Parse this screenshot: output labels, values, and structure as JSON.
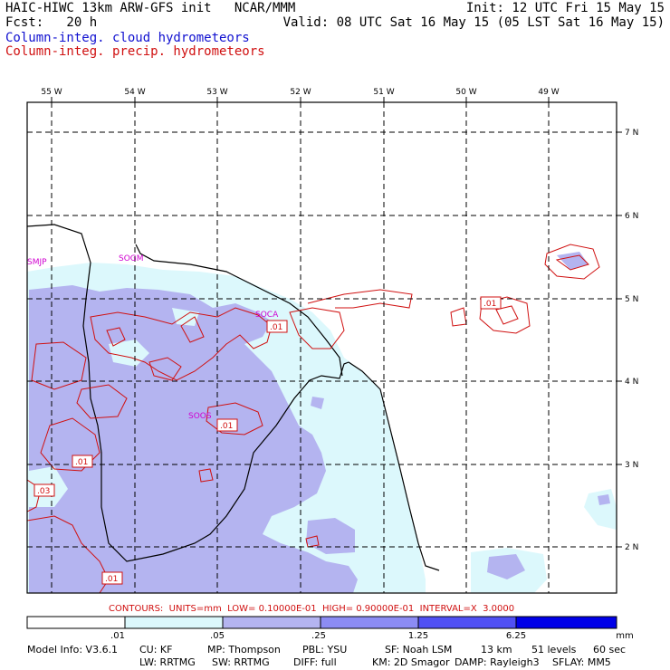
{
  "header": {
    "line1_left": "HAIC-HIWC 13km ARW-GFS init   NCAR/MMM",
    "line1_right": "Init: 12 UTC Fri 15 May 15",
    "line2_left": "Fcst:   20 h",
    "line2_right": "Valid: 08 UTC Sat 16 May 15 (05 LST Sat 16 May 15)",
    "legend_cloud": "Column-integ. cloud hydrometeors",
    "legend_precip": "Column-integ. precip. hydrometeors"
  },
  "map": {
    "lon_labels": [
      "55 W",
      "54 W",
      "53 W",
      "52 W",
      "51 W",
      "50 W",
      "49 W"
    ],
    "lat_labels": [
      "7 N",
      "6 N",
      "5 N",
      "4 N",
      "3 N",
      "2 N"
    ],
    "stations": [
      "SMJP",
      "SOGM",
      "SOCA",
      "SOOS"
    ],
    "contour_labels": [
      ".01",
      ".01",
      ".01",
      ".01",
      ".03",
      ".01"
    ]
  },
  "contour_note": "CONTOURS:  UNITS=mm  LOW= 0.10000E-01  HIGH= 0.90000E-01  INTERVAL=X  3.0000",
  "colorbar": {
    "ticks": [
      ".01",
      ".05",
      ".25",
      "1.25",
      "6.25"
    ],
    "unit": "mm",
    "colors": [
      "#ffffff",
      "#dcf8fc",
      "#b4b4f0",
      "#8c8cf4",
      "#5050f4",
      "#0000e8"
    ]
  },
  "model_info": {
    "line1": [
      "Model Info: V3.6.1",
      "CU: KF",
      "MP: Thompson",
      "PBL: YSU",
      "SF: Noah LSM",
      "13 km",
      "51 levels",
      "60 sec"
    ],
    "line2": [
      "LW: RRTMG",
      "SW: RRTMG",
      "DIFF: full",
      "KM: 2D Smagor",
      "DAMP: Rayleigh3",
      "SFLAY: MM5"
    ]
  }
}
